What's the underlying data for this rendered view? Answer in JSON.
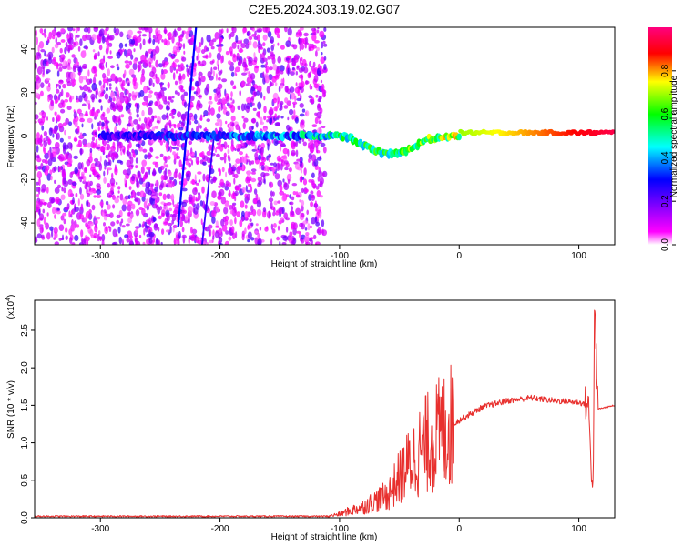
{
  "figure": {
    "title": "C2E5.2024.303.19.02.G07"
  },
  "chart_data": [
    {
      "type": "heatmap",
      "xlabel": "Height of straight line (km)",
      "ylabel": "Frequency (Hz)",
      "xlim": [
        -355,
        130
      ],
      "ylim": [
        -50,
        50
      ],
      "xticks": [
        -300,
        -200,
        -100,
        0,
        100
      ],
      "yticks": [
        -40,
        -20,
        0,
        20,
        40
      ],
      "grid": false,
      "colorbar": {
        "label": "Normalized spectral amplitude",
        "range": [
          0,
          1
        ],
        "ticks": [
          0.0,
          0.2,
          0.4,
          0.6,
          0.8
        ],
        "colormap": [
          "#ffffff",
          "#ff00ff",
          "#8000ff",
          "#0000ff",
          "#00ffff",
          "#00ff00",
          "#ffff00",
          "#ff0000",
          "#ff007f"
        ]
      },
      "features": {
        "noise_region_x": [
          -355,
          -112
        ],
        "noise_amplitude": 0.15,
        "main_line_x": [
          -300,
          130
        ],
        "main_line_amplitude_start": 0.25,
        "main_line_amplitude_end": 0.95,
        "main_line_dip": {
          "x": [
            -80,
            -40
          ],
          "min_freq": -10
        },
        "stripe_1": {
          "x": [
            -235,
            -220
          ],
          "y": [
            -42,
            50
          ],
          "amplitude": 0.3
        },
        "stripe_2": {
          "x": [
            -215,
            -205
          ],
          "y": [
            -50,
            0
          ],
          "amplitude": 0.25
        }
      }
    },
    {
      "type": "line",
      "xlabel": "Height of straight line (km)",
      "ylabel": "SNR (10 * v/v)",
      "y_multiplier_label": "(x10",
      "y_multiplier_exp": "4",
      "y_multiplier_close": ")",
      "xlim": [
        -355,
        130
      ],
      "ylim": [
        0,
        2.9
      ],
      "xticks": [
        -300,
        -200,
        -100,
        0,
        100
      ],
      "yticks": [
        0.0,
        0.5,
        1.0,
        1.5,
        2.0,
        2.5
      ],
      "grid": false,
      "color": "#e8302e",
      "key_points": [
        {
          "x": -355,
          "y": 0.02
        },
        {
          "x": -110,
          "y": 0.02
        },
        {
          "x": -100,
          "y": 0.05
        },
        {
          "x": -80,
          "y": 0.15
        },
        {
          "x": -60,
          "y": 0.3
        },
        {
          "x": -45,
          "y": 0.65
        },
        {
          "x": -30,
          "y": 0.95
        },
        {
          "x": -10,
          "y": 1.2
        },
        {
          "x": 0,
          "y": 1.3
        },
        {
          "x": 20,
          "y": 1.48
        },
        {
          "x": 40,
          "y": 1.56
        },
        {
          "x": 60,
          "y": 1.6
        },
        {
          "x": 80,
          "y": 1.56
        },
        {
          "x": 100,
          "y": 1.54
        },
        {
          "x": 108,
          "y": 1.5
        },
        {
          "x": 112,
          "y": 0.25
        },
        {
          "x": 113,
          "y": 2.85
        },
        {
          "x": 116,
          "y": 1.45
        },
        {
          "x": 130,
          "y": 1.5
        }
      ]
    }
  ]
}
